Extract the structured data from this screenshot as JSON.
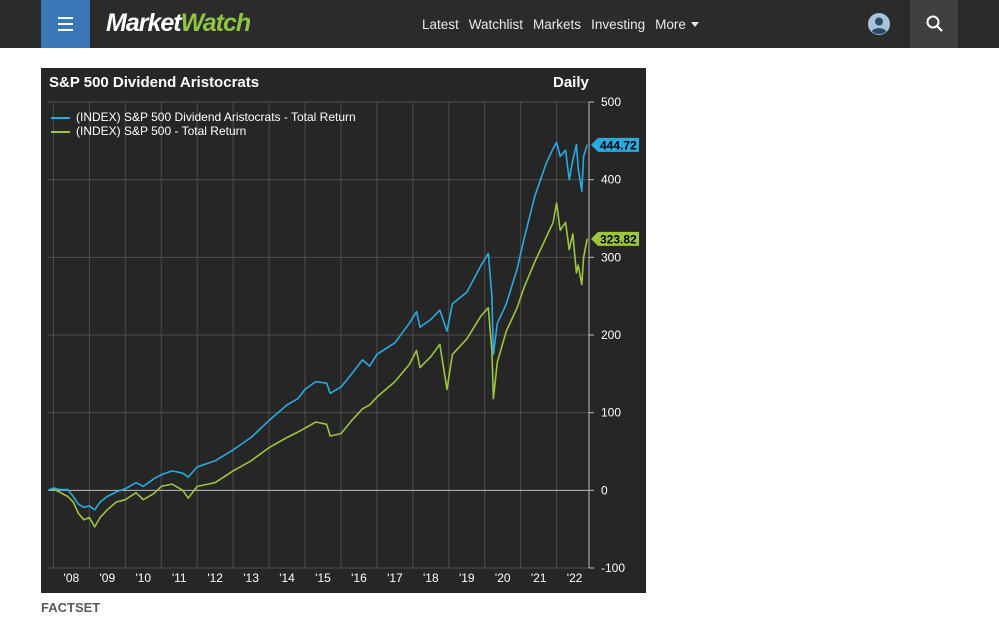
{
  "header": {
    "logo_main": "Market",
    "logo_accent": "Watch",
    "nav": [
      "Latest",
      "Watchlist",
      "Markets",
      "Investing"
    ],
    "more_label": "More",
    "colors": {
      "background": "#2b2b2b",
      "menu_button": "#3a77b6",
      "logo_accent": "#8ec63f"
    },
    "icons": [
      "menu-icon",
      "user-icon",
      "search-icon",
      "caret-down-icon"
    ]
  },
  "source": "FACTSET",
  "chart_data": {
    "type": "line",
    "title": "S&P 500 Dividend Aristocrats",
    "period": "Daily",
    "xlabel": "",
    "ylabel": "",
    "x_tick_labels": [
      "'08",
      "'09",
      "'10",
      "'11",
      "'12",
      "'13",
      "'14",
      "'15",
      "'16",
      "'17",
      "'18",
      "'19",
      "'20",
      "'21",
      "'22"
    ],
    "y_ticks": [
      500,
      400,
      300,
      200,
      100,
      0,
      -100
    ],
    "ylim": [
      -100,
      500
    ],
    "xlim": [
      2007.85,
      2022.9
    ],
    "y_axis_side": "right",
    "grid": true,
    "legend_position": "top-left",
    "series": [
      {
        "name": "(INDEX) S&P 500 Dividend Aristocrats - Total Return",
        "color": "#29abe2",
        "last_value": 444.72,
        "last_value_label": "444.72",
        "points": [
          [
            2007.85,
            0
          ],
          [
            2008.0,
            3
          ],
          [
            2008.2,
            1
          ],
          [
            2008.4,
            1
          ],
          [
            2008.55,
            -8
          ],
          [
            2008.7,
            -18
          ],
          [
            2008.85,
            -22
          ],
          [
            2009.0,
            -20
          ],
          [
            2009.15,
            -25
          ],
          [
            2009.3,
            -15
          ],
          [
            2009.5,
            -8
          ],
          [
            2009.75,
            -2
          ],
          [
            2010.0,
            2
          ],
          [
            2010.3,
            10
          ],
          [
            2010.5,
            5
          ],
          [
            2010.8,
            15
          ],
          [
            2011.0,
            20
          ],
          [
            2011.3,
            25
          ],
          [
            2011.6,
            22
          ],
          [
            2011.75,
            17
          ],
          [
            2012.0,
            30
          ],
          [
            2012.5,
            38
          ],
          [
            2013.0,
            52
          ],
          [
            2013.5,
            68
          ],
          [
            2014.0,
            90
          ],
          [
            2014.5,
            110
          ],
          [
            2014.8,
            118
          ],
          [
            2015.0,
            130
          ],
          [
            2015.3,
            140
          ],
          [
            2015.6,
            138
          ],
          [
            2015.7,
            125
          ],
          [
            2016.0,
            133
          ],
          [
            2016.3,
            150
          ],
          [
            2016.6,
            168
          ],
          [
            2016.8,
            160
          ],
          [
            2017.0,
            175
          ],
          [
            2017.5,
            190
          ],
          [
            2017.9,
            215
          ],
          [
            2018.1,
            230
          ],
          [
            2018.2,
            210
          ],
          [
            2018.5,
            220
          ],
          [
            2018.75,
            232
          ],
          [
            2018.95,
            205
          ],
          [
            2019.1,
            240
          ],
          [
            2019.5,
            255
          ],
          [
            2019.9,
            290
          ],
          [
            2020.1,
            305
          ],
          [
            2020.2,
            250
          ],
          [
            2020.24,
            175
          ],
          [
            2020.35,
            215
          ],
          [
            2020.6,
            240
          ],
          [
            2020.9,
            285
          ],
          [
            2021.1,
            325
          ],
          [
            2021.4,
            380
          ],
          [
            2021.7,
            420
          ],
          [
            2021.9,
            440
          ],
          [
            2022.0,
            448
          ],
          [
            2022.1,
            430
          ],
          [
            2022.25,
            438
          ],
          [
            2022.35,
            400
          ],
          [
            2022.45,
            425
          ],
          [
            2022.55,
            445
          ],
          [
            2022.6,
            415
          ],
          [
            2022.7,
            385
          ],
          [
            2022.75,
            430
          ],
          [
            2022.85,
            445
          ]
        ]
      },
      {
        "name": "(INDEX) S&P 500 - Total Return",
        "color": "#9cc63b",
        "last_value": 323.82,
        "last_value_label": "323.82",
        "points": [
          [
            2007.85,
            0
          ],
          [
            2008.0,
            2
          ],
          [
            2008.2,
            -3
          ],
          [
            2008.4,
            -8
          ],
          [
            2008.55,
            -15
          ],
          [
            2008.7,
            -30
          ],
          [
            2008.85,
            -38
          ],
          [
            2009.0,
            -35
          ],
          [
            2009.15,
            -47
          ],
          [
            2009.3,
            -35
          ],
          [
            2009.5,
            -25
          ],
          [
            2009.75,
            -15
          ],
          [
            2010.0,
            -12
          ],
          [
            2010.3,
            -3
          ],
          [
            2010.5,
            -12
          ],
          [
            2010.8,
            -4
          ],
          [
            2011.0,
            5
          ],
          [
            2011.3,
            8
          ],
          [
            2011.6,
            0
          ],
          [
            2011.75,
            -10
          ],
          [
            2012.0,
            5
          ],
          [
            2012.5,
            10
          ],
          [
            2013.0,
            25
          ],
          [
            2013.5,
            38
          ],
          [
            2014.0,
            55
          ],
          [
            2014.5,
            68
          ],
          [
            2014.8,
            75
          ],
          [
            2015.0,
            80
          ],
          [
            2015.3,
            88
          ],
          [
            2015.6,
            85
          ],
          [
            2015.7,
            70
          ],
          [
            2016.0,
            73
          ],
          [
            2016.3,
            90
          ],
          [
            2016.6,
            105
          ],
          [
            2016.8,
            110
          ],
          [
            2017.0,
            120
          ],
          [
            2017.5,
            140
          ],
          [
            2017.9,
            162
          ],
          [
            2018.1,
            180
          ],
          [
            2018.2,
            158
          ],
          [
            2018.5,
            172
          ],
          [
            2018.75,
            188
          ],
          [
            2018.95,
            130
          ],
          [
            2019.1,
            175
          ],
          [
            2019.5,
            195
          ],
          [
            2019.9,
            225
          ],
          [
            2020.1,
            235
          ],
          [
            2020.2,
            180
          ],
          [
            2020.24,
            118
          ],
          [
            2020.35,
            165
          ],
          [
            2020.6,
            205
          ],
          [
            2020.9,
            235
          ],
          [
            2021.1,
            262
          ],
          [
            2021.4,
            295
          ],
          [
            2021.7,
            325
          ],
          [
            2021.9,
            345
          ],
          [
            2022.0,
            370
          ],
          [
            2022.1,
            335
          ],
          [
            2022.25,
            345
          ],
          [
            2022.35,
            310
          ],
          [
            2022.45,
            330
          ],
          [
            2022.55,
            280
          ],
          [
            2022.6,
            290
          ],
          [
            2022.7,
            265
          ],
          [
            2022.75,
            300
          ],
          [
            2022.85,
            324
          ]
        ]
      }
    ]
  }
}
